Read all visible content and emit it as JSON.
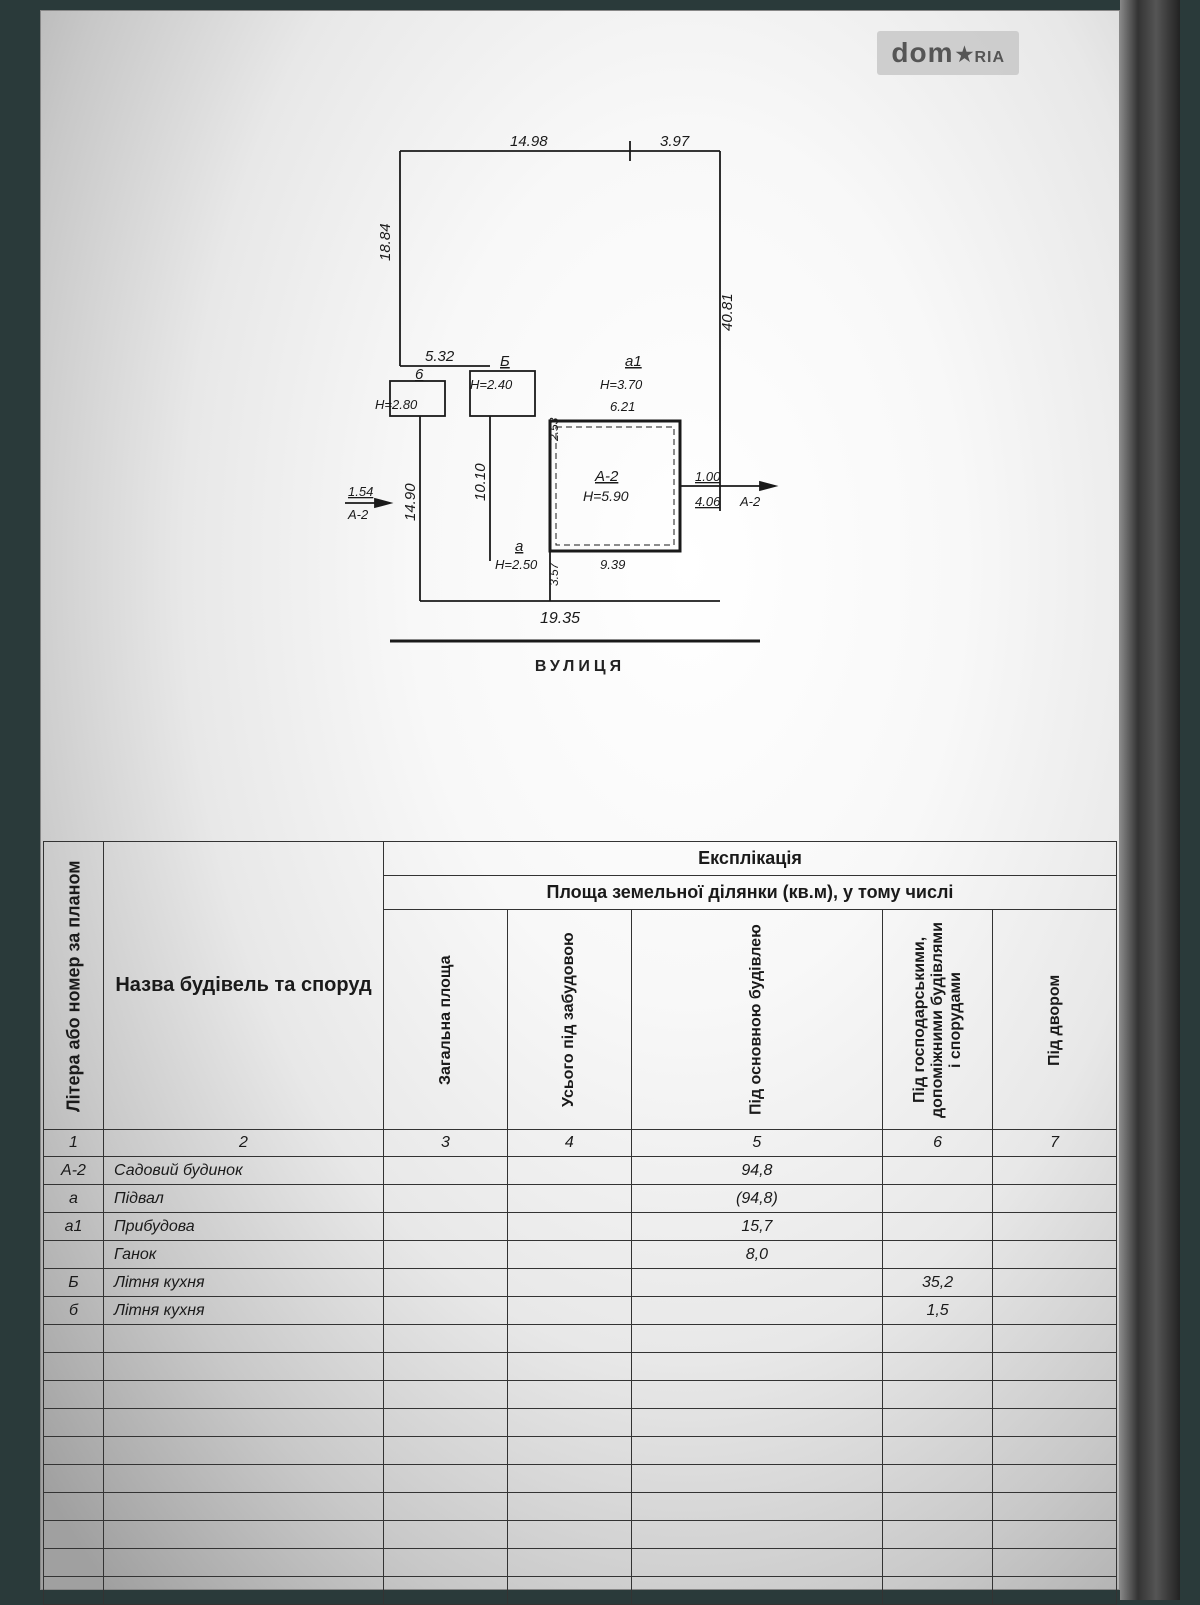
{
  "watermark": {
    "text": "dom",
    "suffix": "RIA"
  },
  "diagram": {
    "street_label": "ВУЛИЦЯ",
    "dims": {
      "top_left": "14.98",
      "top_right": "3.97",
      "left_upper": "18.84",
      "right_side": "40.81",
      "mid_left": "5.32",
      "b_h": "6",
      "b_h_label": "Н=2.80",
      "Б_h": "Б",
      "Б_h_label": "Н=2.40",
      "a1_h": "а1",
      "a1_h_label": "Н=3.70",
      "a1_width": "6.21",
      "a2_lbl": "А-2",
      "a2_h": "Н=5.90",
      "a2_inner_h": "2.53",
      "left_lower": "14.90",
      "inner10": "10.10",
      "left_ext": "1.54",
      "left_ext2": "А-2",
      "a_h": "а",
      "a_h_label": "Н=2.50",
      "bottom_seg": "3.57",
      "bottom_width": "9.39",
      "right_ext1": "1.00",
      "right_ext2": "4.06",
      "right_ext3": "А-2",
      "street_width": "19.35"
    },
    "colors": {
      "line": "#1a1a1a",
      "fill_building": "none",
      "hatch": "#1a1a1a"
    }
  },
  "table": {
    "title": "Експлікація",
    "subtitle": "Площа земельної ділянки (кв.м), у тому числі",
    "headers": {
      "col1": "Літера або номер за планом",
      "col2": "Назва будівель та споруд",
      "col3": "Загальна площа",
      "col4": "Усього під забудовою",
      "col5": "Під основною будівлею",
      "col6": "Під господарськими, допоміжними будівлями і спорудами",
      "col7": "Під двором"
    },
    "colnums": [
      "1",
      "2",
      "3",
      "4",
      "5",
      "6",
      "7"
    ],
    "rows": [
      {
        "lit": "А-2",
        "name": "Садовий будинок",
        "c3": "",
        "c4": "",
        "c5": "94,8",
        "c6": "",
        "c7": ""
      },
      {
        "lit": "а",
        "name": "Підвал",
        "c3": "",
        "c4": "",
        "c5": "(94,8)",
        "c6": "",
        "c7": ""
      },
      {
        "lit": "а1",
        "name": "Прибудова",
        "c3": "",
        "c4": "",
        "c5": "15,7",
        "c6": "",
        "c7": ""
      },
      {
        "lit": "",
        "name": "Ганок",
        "c3": "",
        "c4": "",
        "c5": "8,0",
        "c6": "",
        "c7": ""
      },
      {
        "lit": "Б",
        "name": "Літня кухня",
        "c3": "",
        "c4": "",
        "c5": "",
        "c6": "35,2",
        "c7": ""
      },
      {
        "lit": "б",
        "name": "Літня кухня",
        "c3": "",
        "c4": "",
        "c5": "",
        "c6": "1,5",
        "c7": ""
      }
    ],
    "empty_rows": 10
  }
}
